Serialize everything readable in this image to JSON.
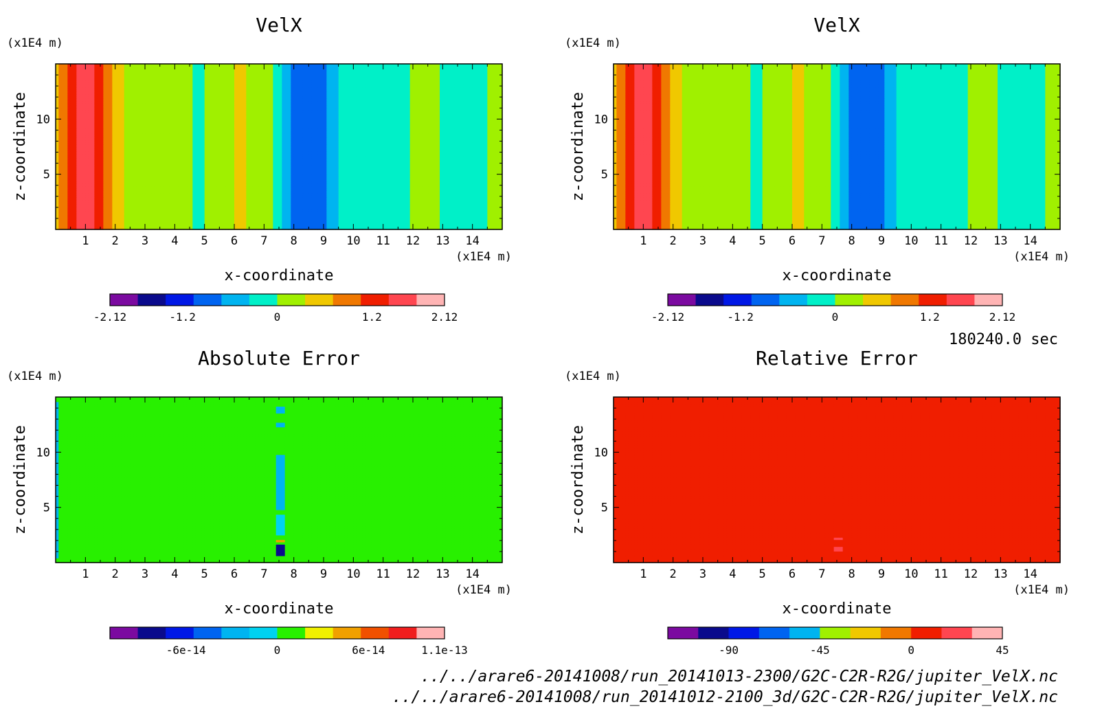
{
  "chart_data": [
    {
      "type": "heatmap",
      "title": "VelX",
      "xlabel": "x-coordinate",
      "ylabel": "z-coordinate",
      "xunit": "(x1E4 m)",
      "yunit": "(x1E4 m)",
      "xlim": [
        0,
        15
      ],
      "ylim": [
        0,
        15
      ],
      "xticks": [
        1,
        2,
        3,
        4,
        5,
        6,
        7,
        8,
        9,
        10,
        11,
        12,
        13,
        14
      ],
      "yticks": [
        5,
        10
      ],
      "colorbar": {
        "min": -2.12,
        "max": 2.12,
        "colors": [
          "#7b0aa0",
          "#0a0a8c",
          "#0018e6",
          "#0064f0",
          "#00b4f0",
          "#00f0c8",
          "#a0f000",
          "#f0c800",
          "#f07800",
          "#f01e00",
          "#ff4650",
          "#ffb4b4"
        ],
        "tick_labels": [
          "-2.12",
          "-1.2",
          "0",
          "1.2",
          "2.12"
        ],
        "tick_values": [
          -2.12,
          -1.2,
          0,
          1.2,
          2.12
        ]
      },
      "field": "velx"
    },
    {
      "type": "heatmap",
      "title": "VelX",
      "xlabel": "x-coordinate",
      "ylabel": "z-coordinate",
      "xunit": "(x1E4 m)",
      "yunit": "(x1E4 m)",
      "xlim": [
        0,
        15
      ],
      "ylim": [
        0,
        15
      ],
      "xticks": [
        1,
        2,
        3,
        4,
        5,
        6,
        7,
        8,
        9,
        10,
        11,
        12,
        13,
        14
      ],
      "yticks": [
        5,
        10
      ],
      "colorbar": {
        "min": -2.12,
        "max": 2.12,
        "colors": [
          "#7b0aa0",
          "#0a0a8c",
          "#0018e6",
          "#0064f0",
          "#00b4f0",
          "#00f0c8",
          "#a0f000",
          "#f0c800",
          "#f07800",
          "#f01e00",
          "#ff4650",
          "#ffb4b4"
        ],
        "tick_labels": [
          "-2.12",
          "-1.2",
          "0",
          "1.2",
          "2.12"
        ],
        "tick_values": [
          -2.12,
          -1.2,
          0,
          1.2,
          2.12
        ]
      },
      "field": "velx"
    },
    {
      "type": "heatmap",
      "title": "Absolute Error",
      "xlabel": "x-coordinate",
      "ylabel": "z-coordinate",
      "xunit": "(x1E4 m)",
      "yunit": "(x1E4 m)",
      "xlim": [
        0,
        15
      ],
      "ylim": [
        0,
        15
      ],
      "xticks": [
        1,
        2,
        3,
        4,
        5,
        6,
        7,
        8,
        9,
        10,
        11,
        12,
        13,
        14
      ],
      "yticks": [
        5,
        10
      ],
      "colorbar": {
        "min": -1.1e-13,
        "max": 1.1e-13,
        "colors": [
          "#7b0aa0",
          "#0a0a8c",
          "#0018e6",
          "#0064f0",
          "#00b4f0",
          "#00d2f0",
          "#28f000",
          "#f0f000",
          "#f0a000",
          "#f05000",
          "#f01e1e",
          "#ffb4b4"
        ],
        "tick_labels": [
          "-6e-14",
          "0",
          "6e-14",
          "1.1e-13"
        ],
        "tick_values": [
          -6e-14,
          0,
          6e-14,
          1.1e-13
        ]
      },
      "field": "abs_error",
      "background_value": 1e-14
    },
    {
      "type": "heatmap",
      "title": "Relative Error",
      "xlabel": "x-coordinate",
      "ylabel": "z-coordinate",
      "xunit": "(x1E4 m)",
      "yunit": "(x1E4 m)",
      "xlim": [
        0,
        15
      ],
      "ylim": [
        0,
        15
      ],
      "xticks": [
        1,
        2,
        3,
        4,
        5,
        6,
        7,
        8,
        9,
        10,
        11,
        12,
        13,
        14
      ],
      "yticks": [
        5,
        10
      ],
      "colorbar": {
        "min": -120,
        "max": 45,
        "colors": [
          "#7b0aa0",
          "#0a0a8c",
          "#0018e6",
          "#0064f0",
          "#00b4f0",
          "#a0f000",
          "#f0c800",
          "#f07800",
          "#f01e00",
          "#ff4650",
          "#ffb4b4"
        ],
        "tick_labels": [
          "-90",
          "-45",
          "0",
          "45"
        ],
        "tick_values": [
          -90,
          -45,
          0,
          45
        ]
      },
      "field": "rel_error",
      "background_value": 0
    }
  ],
  "timestamp": "180240.0 sec",
  "files": [
    "../../arare6-20141008/run_20141013-2300/G2C-C2R-R2G/jupiter_VelX.nc",
    "../../arare6-20141008/run_20141012-2100_3d/G2C-C2R-R2G/jupiter_VelX.nc"
  ]
}
